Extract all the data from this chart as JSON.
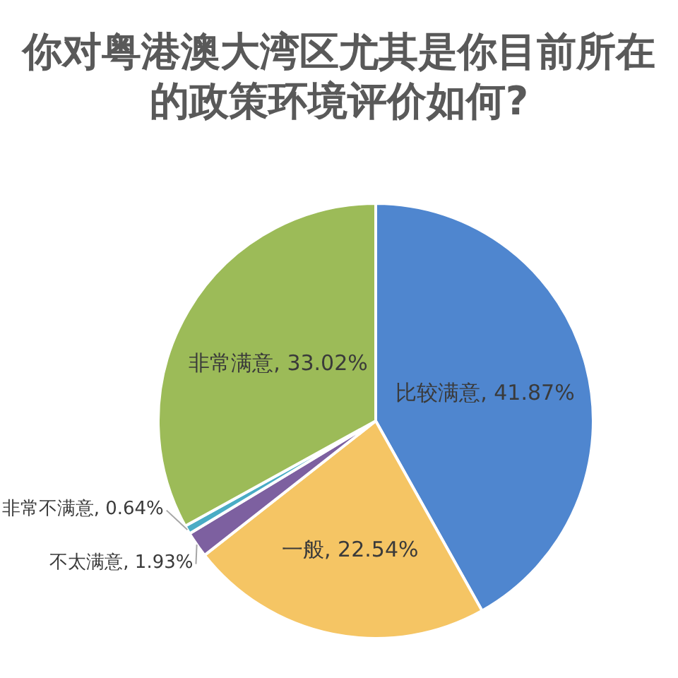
{
  "chart_data": {
    "type": "pie",
    "title": "你对粤港澳大湾区尤其是你目前所在的政策环境评价如何?",
    "categories": [
      "比较满意",
      "一般",
      "不太满意",
      "非常不满意",
      "非常满意"
    ],
    "values": [
      41.87,
      22.54,
      1.93,
      0.64,
      33.02
    ],
    "colors": [
      "#4f86cf",
      "#f5c564",
      "#7d60a0",
      "#4aacc5",
      "#9cbb58"
    ],
    "value_labels": [
      "41.87%",
      "22.54%",
      "1.93%",
      "0.64%",
      "33.02%"
    ]
  }
}
